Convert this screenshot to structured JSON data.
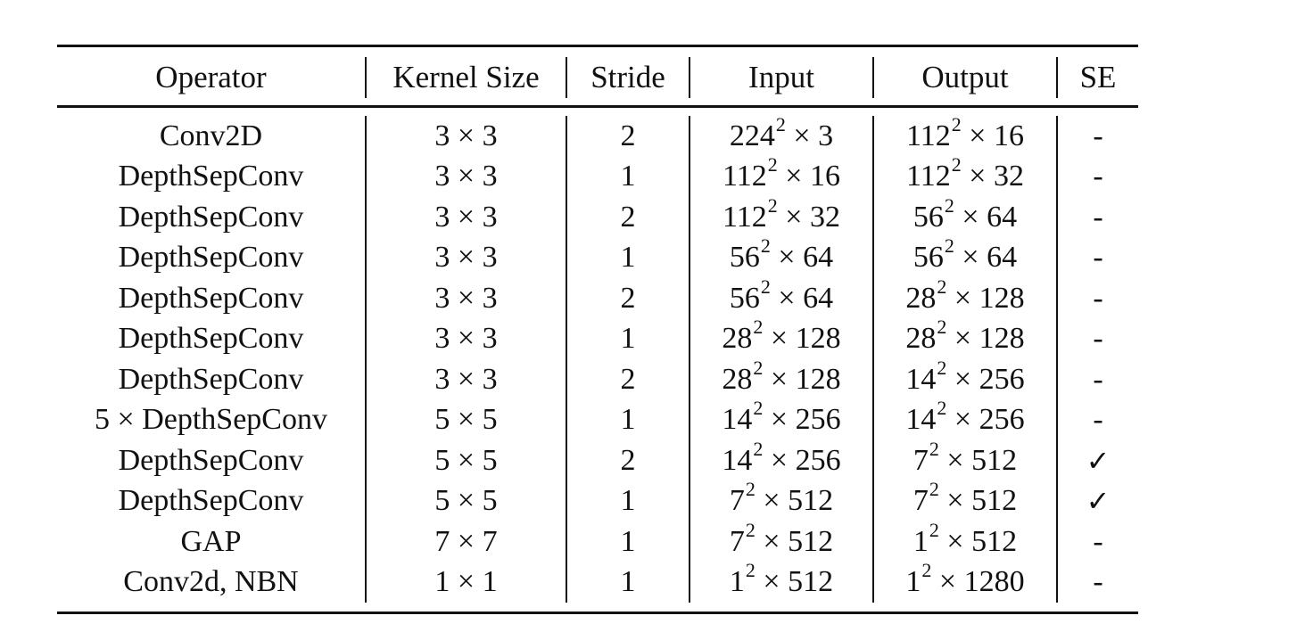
{
  "table": {
    "headers": [
      "Operator",
      "Kernel Size",
      "Stride",
      "Input",
      "Output",
      "SE"
    ],
    "rows": [
      {
        "operator": "Conv2D",
        "kernel": "3 × 3",
        "stride": "2",
        "input_base": "224",
        "input_rest": " × 3",
        "output_base": "112",
        "output_rest": " × 16",
        "se": "-"
      },
      {
        "operator": "DepthSepConv",
        "kernel": "3 × 3",
        "stride": "1",
        "input_base": "112",
        "input_rest": " × 16",
        "output_base": "112",
        "output_rest": " × 32",
        "se": "-"
      },
      {
        "operator": "DepthSepConv",
        "kernel": "3 × 3",
        "stride": "2",
        "input_base": "112",
        "input_rest": " × 32",
        "output_base": "56",
        "output_rest": " × 64",
        "se": "-"
      },
      {
        "operator": "DepthSepConv",
        "kernel": "3 × 3",
        "stride": "1",
        "input_base": "56",
        "input_rest": " × 64",
        "output_base": "56",
        "output_rest": " × 64",
        "se": "-"
      },
      {
        "operator": "DepthSepConv",
        "kernel": "3 × 3",
        "stride": "2",
        "input_base": "56",
        "input_rest": " × 64",
        "output_base": "28",
        "output_rest": " × 128",
        "se": "-"
      },
      {
        "operator": "DepthSepConv",
        "kernel": "3 × 3",
        "stride": "1",
        "input_base": "28",
        "input_rest": " × 128",
        "output_base": "28",
        "output_rest": " × 128",
        "se": "-"
      },
      {
        "operator": "DepthSepConv",
        "kernel": "3 × 3",
        "stride": "2",
        "input_base": "28",
        "input_rest": " × 128",
        "output_base": "14",
        "output_rest": " × 256",
        "se": "-"
      },
      {
        "operator": "5 × DepthSepConv",
        "kernel": "5 × 5",
        "stride": "1",
        "input_base": "14",
        "input_rest": " × 256",
        "output_base": "14",
        "output_rest": " × 256",
        "se": "-"
      },
      {
        "operator": "DepthSepConv",
        "kernel": "5 × 5",
        "stride": "2",
        "input_base": "14",
        "input_rest": " × 256",
        "output_base": "7",
        "output_rest": " × 512",
        "se": "✓"
      },
      {
        "operator": "DepthSepConv",
        "kernel": "5 × 5",
        "stride": "1",
        "input_base": "7",
        "input_rest": " × 512",
        "output_base": "7",
        "output_rest": " × 512",
        "se": "✓"
      },
      {
        "operator": "GAP",
        "kernel": "7 × 7",
        "stride": "1",
        "input_base": "7",
        "input_rest": " × 512",
        "output_base": "1",
        "output_rest": " × 512",
        "se": "-"
      },
      {
        "operator": "Conv2d, NBN",
        "kernel": "1 × 1",
        "stride": "1",
        "input_base": "1",
        "input_rest": " × 512",
        "output_base": "1",
        "output_rest": " × 1280",
        "se": "-"
      }
    ],
    "superscript": "2"
  }
}
